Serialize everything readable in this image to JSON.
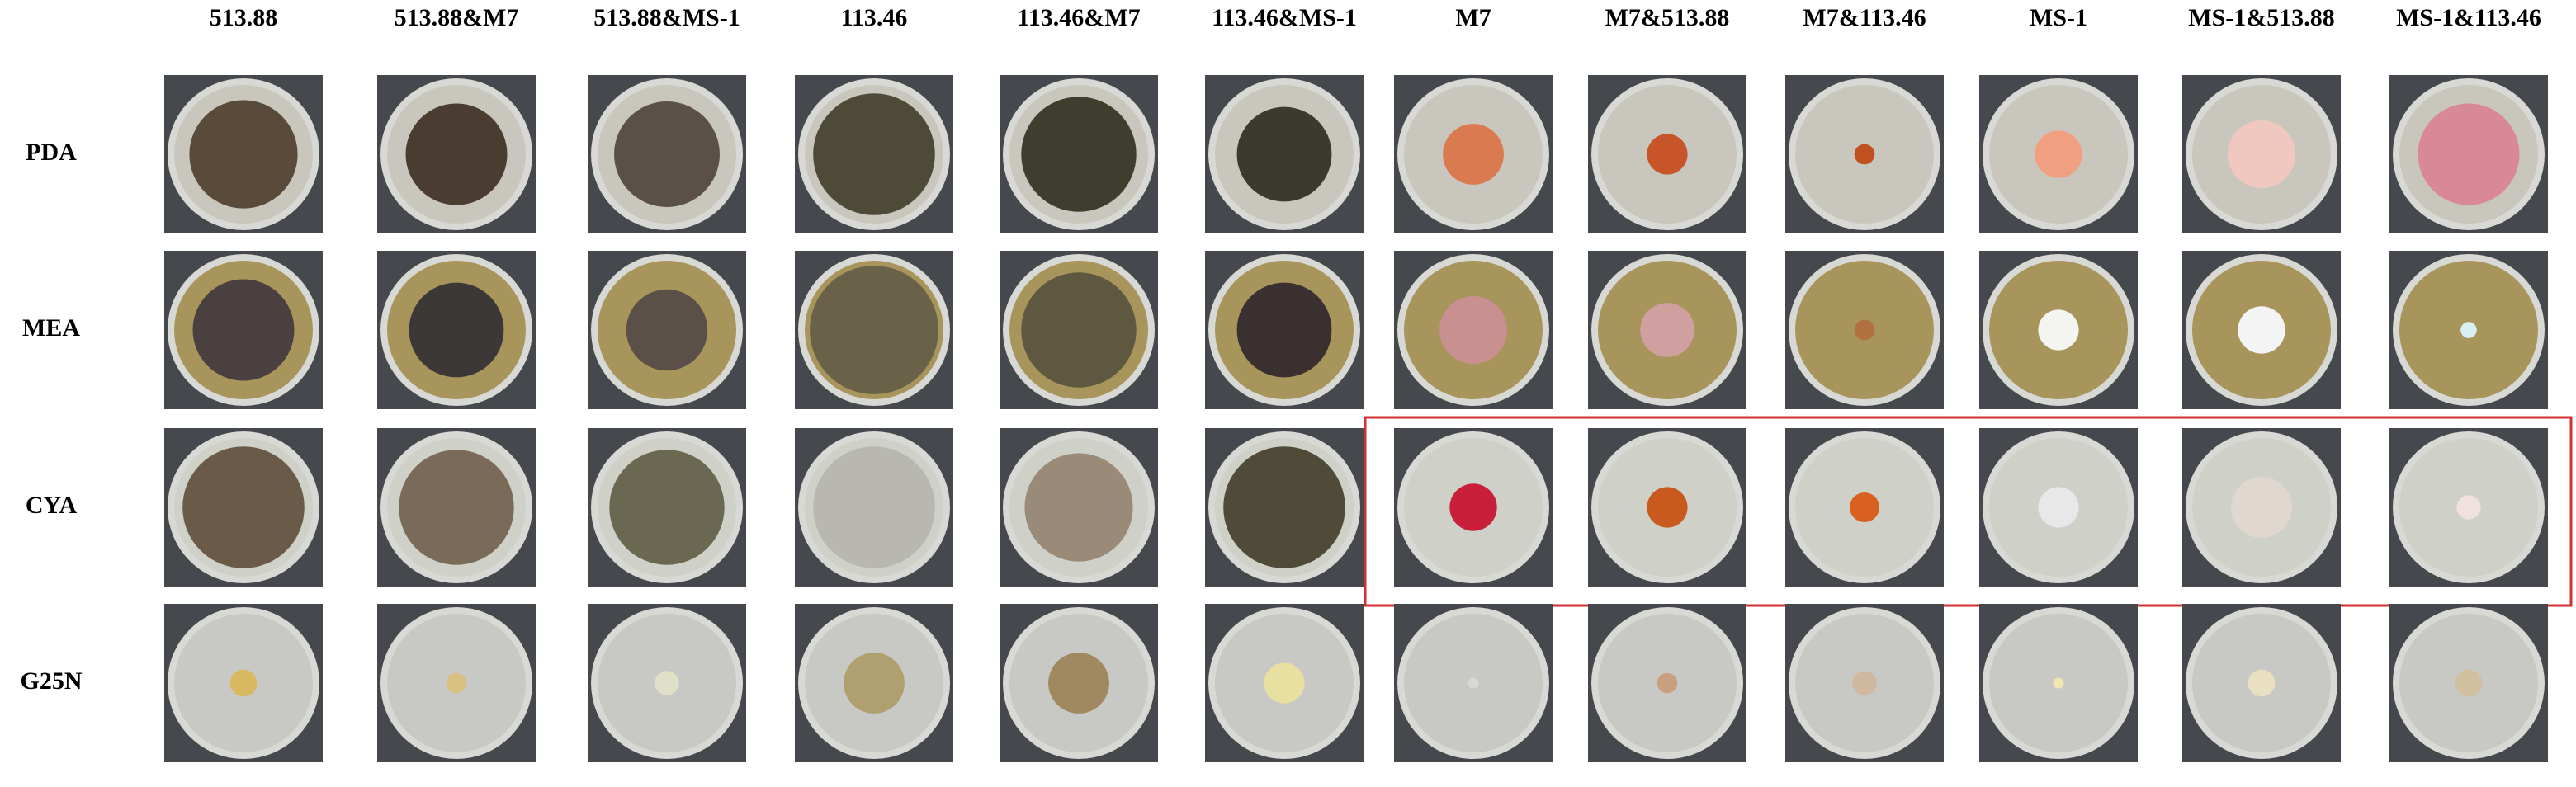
{
  "columns": [
    "513.88",
    "513.88&M7",
    "513.88&MS-1",
    "113.46",
    "113.46&M7",
    "113.46&MS-1",
    "M7",
    "M7&513.88",
    "M7&113.46",
    "MS-1",
    "MS-1&513.88",
    "MS-1&113.46"
  ],
  "rows": [
    "PDA",
    "MEA",
    "CYA",
    "G25N"
  ]
}
